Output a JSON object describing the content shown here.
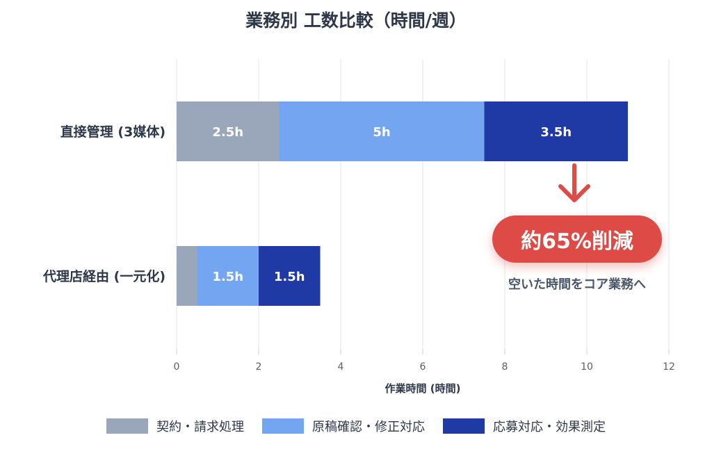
{
  "chart_data": {
    "type": "bar",
    "orientation": "horizontal",
    "stacked": true,
    "title": "業務別 工数比較（時間/週）",
    "xlabel": "作業時間 (時間)",
    "ylabel": "",
    "xlim": [
      0,
      12
    ],
    "x_ticks": [
      "0",
      "2",
      "4",
      "6",
      "8",
      "10",
      "12"
    ],
    "grid": "vertical",
    "legend_position": "bottom",
    "categories": [
      "直接管理 (3媒体)",
      "代理店経由 (一元化)"
    ],
    "series": [
      {
        "name": "契約・請求処理",
        "color": "#9aa7ba",
        "values": [
          2.5,
          0.5
        ],
        "labels": [
          "2.5h",
          ""
        ]
      },
      {
        "name": "原稿確認・修正対応",
        "color": "#73a5f0",
        "values": [
          5,
          1.5
        ],
        "labels": [
          "5h",
          "1.5h"
        ]
      },
      {
        "name": "応募対応・効果測定",
        "color": "#1f3aa4",
        "values": [
          3.5,
          1.5
        ],
        "labels": [
          "3.5h",
          "1.5h"
        ]
      }
    ],
    "annotation": {
      "badge": "約65%削減",
      "subtext": "空いた時間をコア業務へ",
      "badge_color": "#de4a45"
    }
  }
}
